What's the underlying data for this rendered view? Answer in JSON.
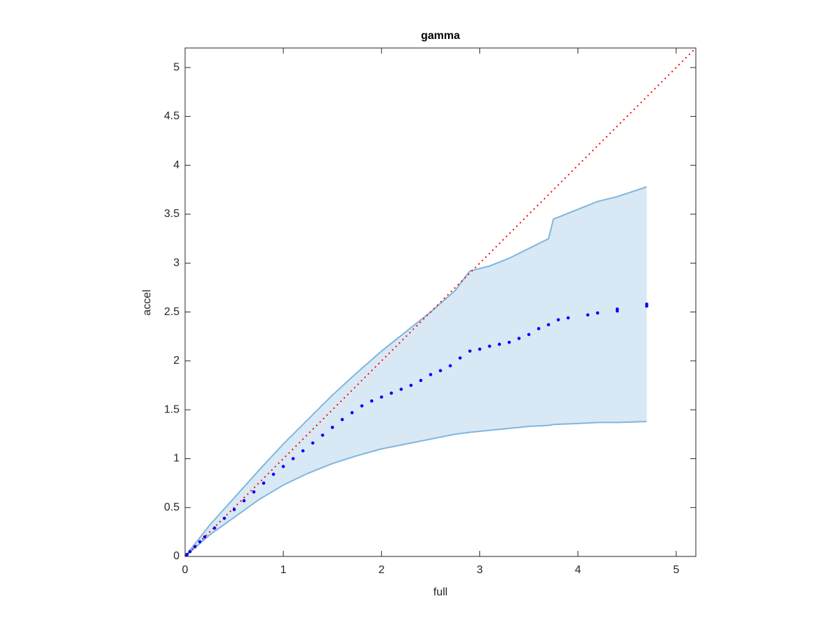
{
  "chart_data": {
    "type": "scatter",
    "title": "gamma",
    "xlabel": "full",
    "ylabel": "accel",
    "xlim": [
      0,
      5.2
    ],
    "ylim": [
      0,
      5.2
    ],
    "xticks": [
      0,
      1,
      2,
      3,
      4,
      5
    ],
    "yticks": [
      0,
      0.5,
      1,
      1.5,
      2,
      2.5,
      3,
      3.5,
      4,
      4.5,
      5
    ],
    "points": {
      "color": "#0000ff",
      "x": [
        0.02,
        0.05,
        0.1,
        0.15,
        0.2,
        0.3,
        0.4,
        0.5,
        0.6,
        0.7,
        0.8,
        0.9,
        1.0,
        1.1,
        1.2,
        1.3,
        1.4,
        1.5,
        1.6,
        1.7,
        1.8,
        1.9,
        2.0,
        2.1,
        2.2,
        2.3,
        2.4,
        2.5,
        2.6,
        2.7,
        2.8,
        2.9,
        3.0,
        3.1,
        3.2,
        3.3,
        3.4,
        3.5,
        3.6,
        3.7,
        3.8,
        3.9,
        4.1,
        4.2,
        4.4,
        4.4,
        4.7,
        4.7
      ],
      "y": [
        0.02,
        0.05,
        0.1,
        0.15,
        0.2,
        0.29,
        0.39,
        0.48,
        0.57,
        0.66,
        0.75,
        0.84,
        0.92,
        1.0,
        1.08,
        1.16,
        1.24,
        1.32,
        1.4,
        1.47,
        1.54,
        1.59,
        1.63,
        1.67,
        1.71,
        1.75,
        1.8,
        1.86,
        1.9,
        1.95,
        2.03,
        2.1,
        2.12,
        2.15,
        2.17,
        2.19,
        2.23,
        2.27,
        2.33,
        2.37,
        2.42,
        2.44,
        2.47,
        2.49,
        2.51,
        2.53,
        2.56,
        2.58
      ]
    },
    "band": {
      "color": "#7fb6dd",
      "fill": "#d9e8f5",
      "x": [
        0,
        0.25,
        0.5,
        0.75,
        1,
        1.25,
        1.5,
        1.75,
        2,
        2.25,
        2.5,
        2.75,
        2.9,
        3.1,
        3.3,
        3.5,
        3.7,
        3.75,
        4,
        4.2,
        4.4,
        4.7
      ],
      "upper": [
        0,
        0.32,
        0.6,
        0.88,
        1.15,
        1.4,
        1.65,
        1.88,
        2.1,
        2.3,
        2.5,
        2.72,
        2.92,
        2.97,
        3.05,
        3.15,
        3.25,
        3.45,
        3.55,
        3.63,
        3.68,
        3.78
      ],
      "lower": [
        0,
        0.22,
        0.4,
        0.58,
        0.73,
        0.85,
        0.95,
        1.03,
        1.1,
        1.15,
        1.2,
        1.25,
        1.27,
        1.29,
        1.31,
        1.33,
        1.34,
        1.35,
        1.36,
        1.37,
        1.37,
        1.38
      ]
    },
    "reference_line": {
      "color": "#ff0000",
      "x": [
        0,
        5.2
      ],
      "y": [
        0,
        5.2
      ]
    }
  }
}
